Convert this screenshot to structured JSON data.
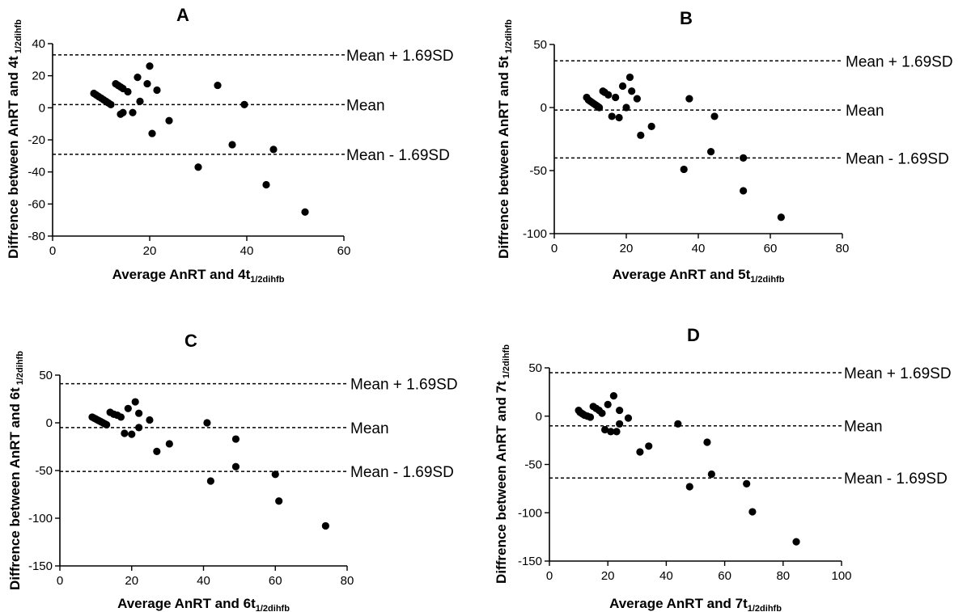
{
  "chart_data": [
    {
      "type": "scatter",
      "panel": "A",
      "xlabel_main": "Average AnRT and 4t",
      "xlabel_sub": "1/2dihfb",
      "ylabel_main": "Diffrence between AnRT and 4t",
      "ylabel_sub": "1/2dihfb",
      "xlim": [
        0,
        60
      ],
      "ylim": [
        -80,
        40
      ],
      "xticks": [
        0,
        20,
        40,
        60
      ],
      "yticks": [
        -80,
        -60,
        -40,
        -20,
        0,
        20,
        40
      ],
      "reference_lines": [
        {
          "label": "Mean + 1.69SD",
          "y": 33
        },
        {
          "label": "Mean",
          "y": 2
        },
        {
          "label": "Mean - 1.69SD",
          "y": -29
        }
      ],
      "points": [
        [
          8.5,
          9
        ],
        [
          9,
          8
        ],
        [
          9.5,
          7
        ],
        [
          10,
          6
        ],
        [
          10.5,
          5
        ],
        [
          11,
          4
        ],
        [
          11.5,
          3
        ],
        [
          12,
          2
        ],
        [
          13,
          15
        ],
        [
          13.5,
          14
        ],
        [
          14,
          13
        ],
        [
          14.5,
          12
        ],
        [
          14,
          -4
        ],
        [
          14.5,
          -3
        ],
        [
          15.5,
          10
        ],
        [
          16.5,
          -3
        ],
        [
          17.5,
          19
        ],
        [
          18,
          4
        ],
        [
          19.5,
          15
        ],
        [
          20,
          26
        ],
        [
          20.5,
          -16
        ],
        [
          21.5,
          11
        ],
        [
          24,
          -8
        ],
        [
          30,
          -37
        ],
        [
          34,
          14
        ],
        [
          37,
          -23
        ],
        [
          39.5,
          2
        ],
        [
          44,
          -48
        ],
        [
          45.5,
          -26
        ],
        [
          52,
          -65
        ]
      ]
    },
    {
      "type": "scatter",
      "panel": "B",
      "xlabel_main": "Average AnRT and 5t",
      "xlabel_sub": "1/2dihfb",
      "ylabel_main": "Diffrence between AnRT and 5t",
      "ylabel_sub": "1/2dihfb",
      "xlim": [
        0,
        80
      ],
      "ylim": [
        -100,
        50
      ],
      "xticks": [
        0,
        20,
        40,
        60,
        80
      ],
      "yticks": [
        -100,
        -50,
        0,
        50
      ],
      "reference_lines": [
        {
          "label": "Mean + 1.69SD",
          "y": 37
        },
        {
          "label": "Mean",
          "y": -2
        },
        {
          "label": "Mean - 1.69SD",
          "y": -40
        }
      ],
      "points": [
        [
          9,
          8
        ],
        [
          9.5,
          6
        ],
        [
          10,
          5
        ],
        [
          10.5,
          4
        ],
        [
          11,
          3
        ],
        [
          11.5,
          2
        ],
        [
          12,
          1
        ],
        [
          12.5,
          0
        ],
        [
          13.5,
          13
        ],
        [
          14,
          12
        ],
        [
          15,
          10
        ],
        [
          16,
          -7
        ],
        [
          17,
          8
        ],
        [
          18,
          -8
        ],
        [
          19,
          17
        ],
        [
          20,
          0
        ],
        [
          21,
          24
        ],
        [
          21.5,
          13
        ],
        [
          23,
          7
        ],
        [
          24,
          -22
        ],
        [
          27,
          -15
        ],
        [
          36,
          -49
        ],
        [
          37.5,
          7
        ],
        [
          43.5,
          -35
        ],
        [
          44.5,
          -7
        ],
        [
          52.5,
          -40
        ],
        [
          52.5,
          -66
        ],
        [
          63,
          -87
        ]
      ]
    },
    {
      "type": "scatter",
      "panel": "C",
      "xlabel_main": "Average AnRT and 6t",
      "xlabel_sub": "1/2dihfb",
      "ylabel_main": "Diffrence between AnRT and 6t",
      "ylabel_sub": "1/2dihfb",
      "xlim": [
        0,
        80
      ],
      "ylim": [
        -150,
        50
      ],
      "xticks": [
        0,
        20,
        40,
        60,
        80
      ],
      "yticks": [
        -150,
        -100,
        -50,
        0,
        50
      ],
      "reference_lines": [
        {
          "label": "Mean + 1.69SD",
          "y": 41
        },
        {
          "label": "Mean",
          "y": -5
        },
        {
          "label": "Mean - 1.69SD",
          "y": -51
        }
      ],
      "points": [
        [
          9,
          6
        ],
        [
          9.5,
          5
        ],
        [
          10,
          4
        ],
        [
          10.5,
          3
        ],
        [
          11,
          2
        ],
        [
          11.5,
          1
        ],
        [
          12,
          0
        ],
        [
          12.5,
          -1
        ],
        [
          13,
          -2
        ],
        [
          14,
          11
        ],
        [
          15,
          9
        ],
        [
          16,
          8
        ],
        [
          17,
          6
        ],
        [
          18,
          -11
        ],
        [
          19,
          15
        ],
        [
          20,
          -12
        ],
        [
          21,
          22
        ],
        [
          22,
          10
        ],
        [
          22,
          -5
        ],
        [
          25,
          3
        ],
        [
          27,
          -30
        ],
        [
          30.5,
          -22
        ],
        [
          41,
          0
        ],
        [
          42,
          -61
        ],
        [
          49,
          -17
        ],
        [
          49,
          -46
        ],
        [
          60,
          -54
        ],
        [
          61,
          -82
        ],
        [
          74,
          -108
        ]
      ]
    },
    {
      "type": "scatter",
      "panel": "D",
      "xlabel_main": "Average AnRT and 7t",
      "xlabel_sub": "1/2dihfb",
      "ylabel_main": "Diffrence between AnRT and 7t",
      "ylabel_sub": "1/2dihfb",
      "xlim": [
        0,
        100
      ],
      "ylim": [
        -150,
        50
      ],
      "xticks": [
        0,
        20,
        40,
        60,
        80,
        100
      ],
      "yticks": [
        -150,
        -100,
        -50,
        0,
        50
      ],
      "reference_lines": [
        {
          "label": "Mean + 1.69SD",
          "y": 45
        },
        {
          "label": "Mean",
          "y": -10
        },
        {
          "label": "Mean - 1.69SD",
          "y": -64
        }
      ],
      "points": [
        [
          10,
          6
        ],
        [
          10.5,
          4
        ],
        [
          11,
          3
        ],
        [
          11.5,
          2
        ],
        [
          12,
          1
        ],
        [
          13,
          0
        ],
        [
          14,
          -1
        ],
        [
          15,
          10
        ],
        [
          16,
          8
        ],
        [
          17,
          6
        ],
        [
          18,
          3
        ],
        [
          19,
          -14
        ],
        [
          20,
          12
        ],
        [
          21,
          -16
        ],
        [
          22,
          21
        ],
        [
          23,
          -16
        ],
        [
          24,
          6
        ],
        [
          24,
          -8
        ],
        [
          27,
          -2
        ],
        [
          31,
          -37
        ],
        [
          34,
          -31
        ],
        [
          44,
          -8
        ],
        [
          48,
          -73
        ],
        [
          54,
          -27
        ],
        [
          55.5,
          -60
        ],
        [
          67.5,
          -70
        ],
        [
          69.5,
          -99
        ],
        [
          84.5,
          -130
        ]
      ]
    }
  ]
}
